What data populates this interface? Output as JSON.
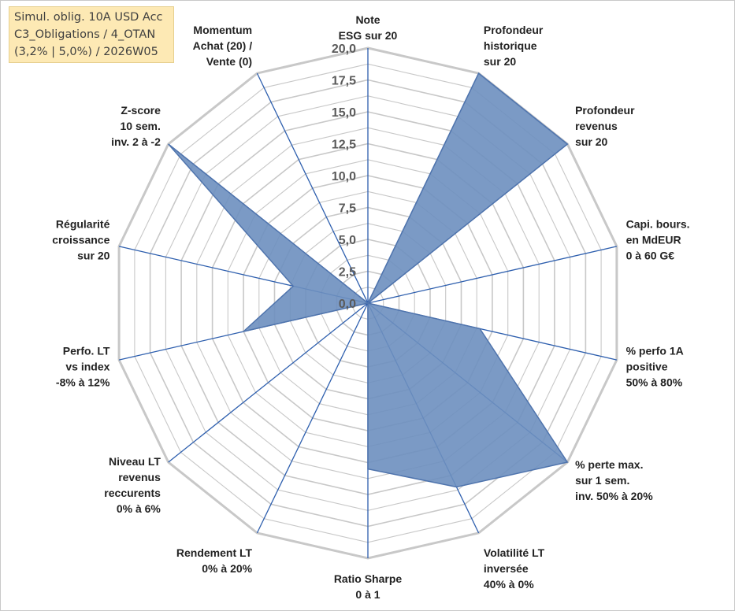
{
  "header": {
    "lines": [
      "Simul. oblig. 10A USD Acc",
      "C3_Obligations / 4_OTAN",
      "(3,2% | 5,0%) / 2026W05"
    ]
  },
  "chart_data": {
    "type": "radar",
    "title": "",
    "rlim": [
      0,
      20
    ],
    "ticks": [
      "0,0",
      "2,5",
      "5,0",
      "7,5",
      "10,0",
      "12,5",
      "15,0",
      "17,5",
      "20,0"
    ],
    "grid": true,
    "fill_color": "#6d8fbf",
    "line_color": "#4f74ad",
    "axis_color": "#2e5fae",
    "grid_color": "#c8c8c8",
    "categories": [
      [
        "Note",
        "ESG sur 20"
      ],
      [
        "Profondeur",
        "historique",
        "sur 20"
      ],
      [
        "Profondeur",
        "revenus",
        "sur 20"
      ],
      [
        "Capi. bours.",
        "en MdEUR",
        "0 à 60 G€"
      ],
      [
        "% perfo 1A",
        "positive",
        "50% à 80%"
      ],
      [
        "% perte max.",
        "sur 1 sem.",
        "inv. 50% à 20%"
      ],
      [
        "Volatilité LT",
        "inversée",
        "40% à 0%"
      ],
      [
        "Ratio Sharpe",
        "0 à 1"
      ],
      [
        "Rendement LT",
        "0% à 20%"
      ],
      [
        "Niveau LT",
        "revenus",
        "reccurents",
        "0% à 6%"
      ],
      [
        "Perfo. LT",
        "vs index",
        "-8% à 12%"
      ],
      [
        "Régularité",
        "croissance",
        "sur 20"
      ],
      [
        "Z-score",
        "10 sem.",
        "inv. 2 à -2"
      ],
      [
        "Momentum",
        "Achat (20) /",
        "Vente (0)"
      ]
    ],
    "values": [
      0,
      20,
      20,
      0,
      9,
      20,
      16,
      13,
      0,
      0,
      10,
      6,
      20,
      0
    ]
  }
}
